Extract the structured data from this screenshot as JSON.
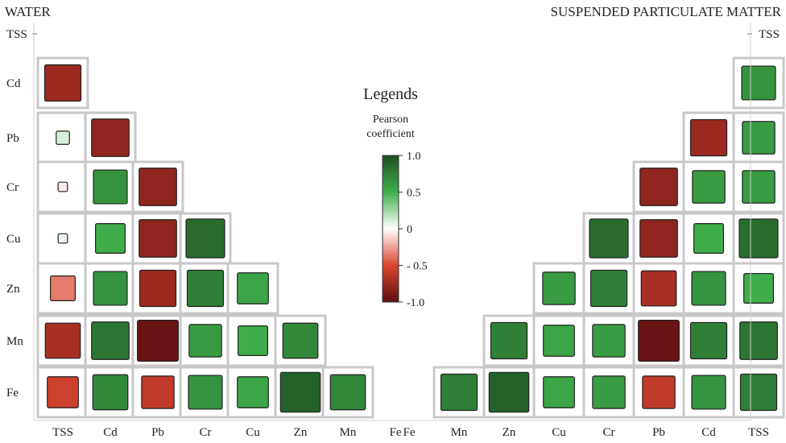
{
  "chart_data": [
    {
      "type": "heatmap",
      "title": "WATER",
      "x_labels": [
        "TSS",
        "Cd",
        "Pb",
        "Cr",
        "Cu",
        "Zn",
        "Mn",
        "Fe"
      ],
      "y_labels": [
        "TSS",
        "Cd",
        "Pb",
        "Cr",
        "Cu",
        "Zn",
        "Mn",
        "Fe"
      ],
      "cells": [
        {
          "row": "Cd",
          "col": "TSS",
          "value": -0.75
        },
        {
          "row": "Pb",
          "col": "TSS",
          "value": 0.1
        },
        {
          "row": "Pb",
          "col": "Cd",
          "value": -0.8
        },
        {
          "row": "Cr",
          "col": "TSS",
          "value": -0.05
        },
        {
          "row": "Cr",
          "col": "Cd",
          "value": 0.65
        },
        {
          "row": "Cr",
          "col": "Pb",
          "value": -0.8
        },
        {
          "row": "Cu",
          "col": "TSS",
          "value": 0.05
        },
        {
          "row": "Cu",
          "col": "Cd",
          "value": 0.5
        },
        {
          "row": "Cu",
          "col": "Pb",
          "value": -0.8
        },
        {
          "row": "Cu",
          "col": "Cr",
          "value": 0.85
        },
        {
          "row": "Zn",
          "col": "TSS",
          "value": -0.35
        },
        {
          "row": "Zn",
          "col": "Cd",
          "value": 0.65
        },
        {
          "row": "Zn",
          "col": "Pb",
          "value": -0.75
        },
        {
          "row": "Zn",
          "col": "Cr",
          "value": 0.75
        },
        {
          "row": "Zn",
          "col": "Cu",
          "value": 0.55
        },
        {
          "row": "Mn",
          "col": "TSS",
          "value": -0.7
        },
        {
          "row": "Mn",
          "col": "Cd",
          "value": 0.8
        },
        {
          "row": "Mn",
          "col": "Pb",
          "value": -0.95
        },
        {
          "row": "Mn",
          "col": "Cr",
          "value": 0.6
        },
        {
          "row": "Mn",
          "col": "Cu",
          "value": 0.5
        },
        {
          "row": "Mn",
          "col": "Zn",
          "value": 0.7
        },
        {
          "row": "Fe",
          "col": "TSS",
          "value": -0.55
        },
        {
          "row": "Fe",
          "col": "Cd",
          "value": 0.7
        },
        {
          "row": "Fe",
          "col": "Pb",
          "value": -0.6
        },
        {
          "row": "Fe",
          "col": "Cr",
          "value": 0.65
        },
        {
          "row": "Fe",
          "col": "Cu",
          "value": 0.55
        },
        {
          "row": "Fe",
          "col": "Zn",
          "value": 0.9
        },
        {
          "row": "Fe",
          "col": "Mn",
          "value": 0.7
        }
      ]
    },
    {
      "type": "heatmap",
      "title": "SUSPENDED PARTICULATE MATTER",
      "x_labels": [
        "Fe",
        "Mn",
        "Zn",
        "Cu",
        "Cr",
        "Pb",
        "Cd",
        "TSS"
      ],
      "y_labels": [
        "TSS",
        "Cd",
        "Pb",
        "Cr",
        "Cu",
        "Zn",
        "Mn",
        "Fe"
      ],
      "cells": [
        {
          "row": "Cd",
          "col": "TSS",
          "value": 0.65
        },
        {
          "row": "Pb",
          "col": "Cd",
          "value": -0.75
        },
        {
          "row": "Pb",
          "col": "TSS",
          "value": 0.6
        },
        {
          "row": "Cr",
          "col": "Pb",
          "value": -0.8
        },
        {
          "row": "Cr",
          "col": "Cd",
          "value": 0.6
        },
        {
          "row": "Cr",
          "col": "TSS",
          "value": 0.6
        },
        {
          "row": "Cu",
          "col": "Cr",
          "value": 0.85
        },
        {
          "row": "Cu",
          "col": "Pb",
          "value": -0.8
        },
        {
          "row": "Cu",
          "col": "Cd",
          "value": 0.5
        },
        {
          "row": "Cu",
          "col": "TSS",
          "value": 0.85
        },
        {
          "row": "Zn",
          "col": "Cu",
          "value": 0.6
        },
        {
          "row": "Zn",
          "col": "Cr",
          "value": 0.75
        },
        {
          "row": "Zn",
          "col": "Pb",
          "value": -0.7
        },
        {
          "row": "Zn",
          "col": "Cd",
          "value": 0.65
        },
        {
          "row": "Zn",
          "col": "TSS",
          "value": 0.5
        },
        {
          "row": "Mn",
          "col": "Zn",
          "value": 0.75
        },
        {
          "row": "Mn",
          "col": "Cu",
          "value": 0.55
        },
        {
          "row": "Mn",
          "col": "Cr",
          "value": 0.6
        },
        {
          "row": "Mn",
          "col": "Pb",
          "value": -0.95
        },
        {
          "row": "Mn",
          "col": "Cd",
          "value": 0.75
        },
        {
          "row": "Mn",
          "col": "TSS",
          "value": 0.8
        },
        {
          "row": "Fe",
          "col": "Mn",
          "value": 0.75
        },
        {
          "row": "Fe",
          "col": "Zn",
          "value": 0.9
        },
        {
          "row": "Fe",
          "col": "Cu",
          "value": 0.55
        },
        {
          "row": "Fe",
          "col": "Cr",
          "value": 0.6
        },
        {
          "row": "Fe",
          "col": "Pb",
          "value": -0.6
        },
        {
          "row": "Fe",
          "col": "Cd",
          "value": 0.65
        },
        {
          "row": "Fe",
          "col": "TSS",
          "value": 0.75
        }
      ]
    }
  ],
  "legend": {
    "title": "Legends",
    "subtitle_line1": "Pearson",
    "subtitle_line2": "coefficient",
    "ticks": [
      "1.0",
      "0.5",
      "0",
      "- 0.5",
      "-1.0"
    ],
    "range": [
      -1,
      1
    ],
    "colors": {
      "neg": "#5e0f12",
      "mid": "#ffffff",
      "pos": "#1f4f22"
    }
  },
  "colors": {
    "grid_border": "#c8c8c8",
    "square_border": "#222222"
  }
}
